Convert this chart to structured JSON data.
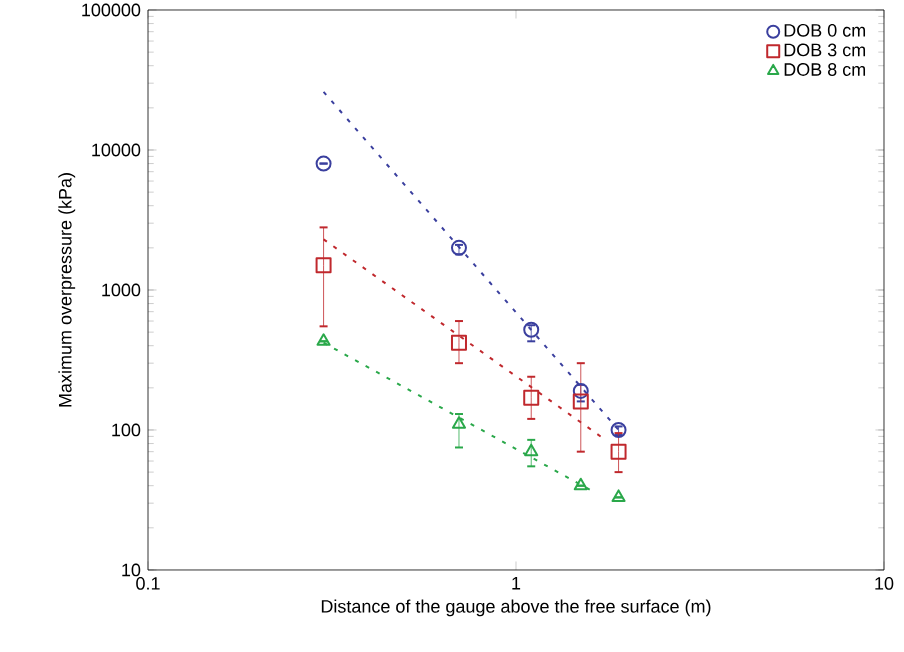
{
  "chart_data": {
    "type": "scatter",
    "xlabel": "Distance of the gauge above the free surface (m)",
    "ylabel": "Maximum overpressure (kPa)",
    "log": "xy",
    "xlim": [
      0.1,
      10
    ],
    "ylim": [
      10,
      100000
    ],
    "xticks": [
      0.1,
      1,
      10
    ],
    "yticks": [
      10,
      100,
      1000,
      10000,
      100000
    ],
    "legend": "top right",
    "grid": false,
    "series": [
      {
        "name": "DOB 0 cm",
        "color": "#3a3f9e",
        "marker": "circle",
        "x": [
          0.3,
          0.7,
          1.1,
          1.5,
          1.9
        ],
        "values": [
          8000,
          2000,
          520,
          190,
          100
        ],
        "errors": [
          null,
          [
            1800,
            2100
          ],
          [
            430,
            560
          ],
          [
            160,
            210
          ],
          [
            92,
            106
          ]
        ]
      },
      {
        "name": "DOB 3 cm",
        "color": "#c0282d",
        "marker": "square",
        "x": [
          0.3,
          0.7,
          1.1,
          1.5,
          1.9
        ],
        "values": [
          1500,
          420,
          170,
          160,
          70
        ],
        "errors": [
          [
            550,
            2800
          ],
          [
            300,
            600
          ],
          [
            120,
            240
          ],
          [
            70,
            300
          ],
          [
            50,
            95
          ]
        ]
      },
      {
        "name": "DOB 8 cm",
        "color": "#2aa84a",
        "marker": "triangle",
        "x": [
          0.3,
          0.7,
          1.1,
          1.5,
          1.9
        ],
        "values": [
          430,
          110,
          70,
          40,
          33
        ],
        "errors": [
          null,
          [
            75,
            130
          ],
          [
            55,
            85
          ],
          null,
          null
        ]
      },
      {
        "type": "line",
        "color": "#3a3f9e",
        "line_style": "dashed",
        "marker": "none",
        "x": [
          0.3,
          1.9
        ],
        "values": [
          26000,
          100
        ]
      },
      {
        "type": "line",
        "color": "#c0282d",
        "line_style": "dashed",
        "marker": "none",
        "x": [
          0.3,
          1.75
        ],
        "values": [
          2300,
          85
        ]
      },
      {
        "type": "line",
        "color": "#2aa84a",
        "line_style": "dashed",
        "marker": "none",
        "x": [
          0.3,
          1.6
        ],
        "values": [
          420,
          37
        ]
      }
    ]
  }
}
